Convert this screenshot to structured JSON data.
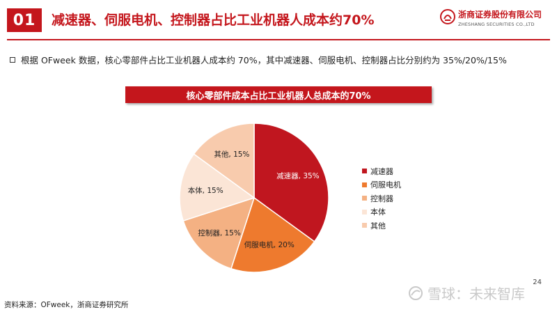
{
  "header": {
    "section_number": "01",
    "title": "减速器、伺服电机、控制器占比工业机器人成本约70%",
    "logo_cn": "浙商证券股份有限公司",
    "logo_en": "ZHESHANG SECURITIES CO.,LTD",
    "brand_color": "#c4161c"
  },
  "bullet_text": "根据 OFweek 数据，核心零部件占比工业机器人成本约 70%，其中减速器、伺服电机、控制器占比分别约为 35%/20%/15%",
  "chart_data": {
    "type": "pie",
    "title": "核心零部件成本占比工业机器人总成本的70%",
    "categories": [
      "减速器",
      "伺服电机",
      "控制器",
      "本体",
      "其他"
    ],
    "values": [
      35,
      20,
      15,
      15,
      15
    ],
    "slice_labels": [
      "减速器, 35%",
      "伺服电机, 20%",
      "控制器, 15%",
      "本体, 15%",
      "其他, 15%"
    ],
    "colors": [
      "#c0161f",
      "#ee7a2e",
      "#f4b183",
      "#fbe5d6",
      "#f8cbad"
    ],
    "start_angle_deg": 0,
    "direction": "clockwise",
    "legend_position": "right"
  },
  "footer": {
    "page_number": "24",
    "source": "资料来源：OFweek，浙商证券研究所",
    "watermark": "雪球：未来智库",
    "watermark_icon": "snowball-icon"
  }
}
